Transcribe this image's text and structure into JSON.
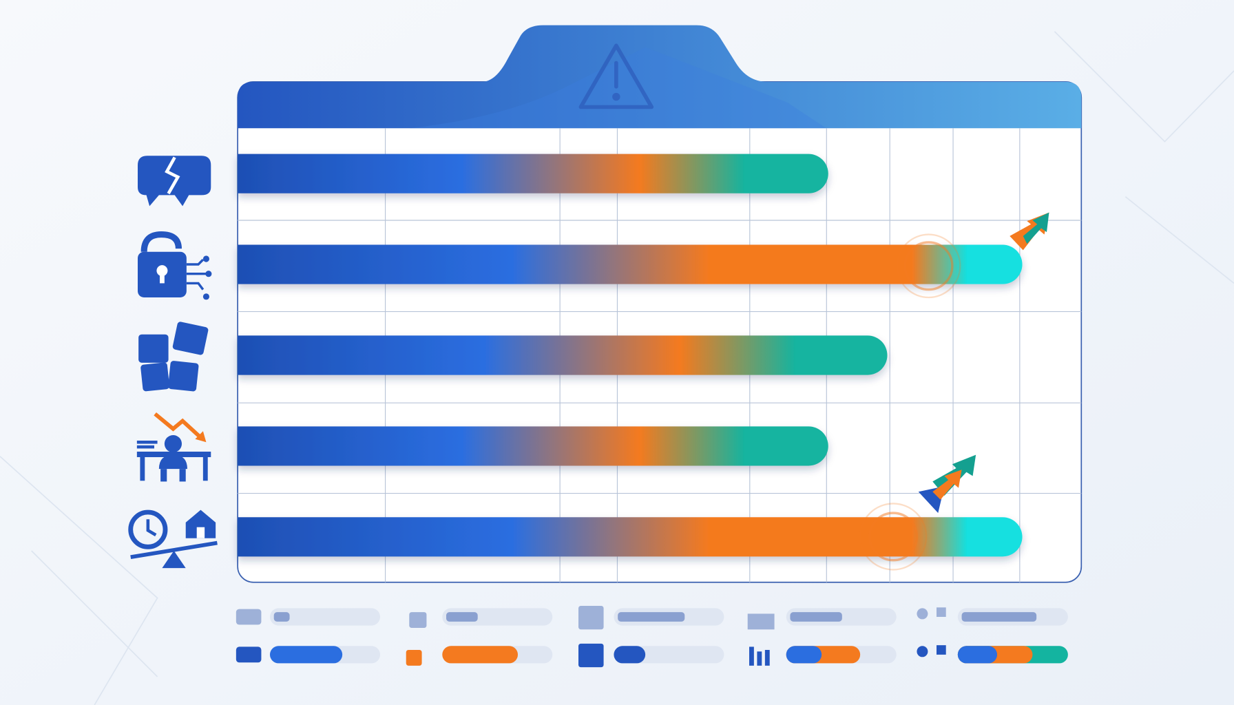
{
  "chart_data": {
    "type": "bar",
    "orientation": "horizontal",
    "categories": [
      null,
      null,
      null,
      null,
      null
    ],
    "values": [
      70,
      93,
      77,
      70,
      93
    ],
    "xlim": [
      0,
      100
    ],
    "xticks": [
      17.5,
      38.2,
      45,
      60.7,
      69.8,
      77.3,
      84.8,
      92.7
    ],
    "grid": true,
    "colors": [
      "#1e4fb4",
      "#2b6ee0",
      "#f47a1f"
    ],
    "end_colors": [
      "#14b4a0",
      "#12e0e0",
      "#14b4a0",
      "#14b4a0",
      "#12e0e0"
    ]
  }
}
